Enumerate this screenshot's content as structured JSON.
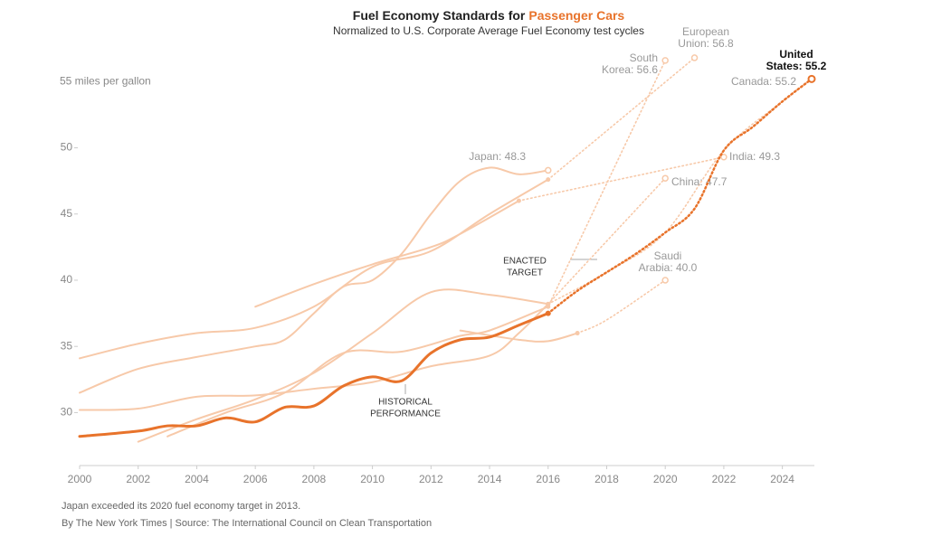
{
  "chart_data": {
    "type": "line",
    "title": [
      "Fuel Economy Standards for",
      "Passenger Cars"
    ],
    "title_accent_color": "#e8732b",
    "subtitle": "Normalized to U.S. Corporate Average Fuel Economy test cycles",
    "annotations": [
      [
        "ENACTED",
        "TARGET"
      ],
      [
        "HISTORICAL",
        "PERFORMANCE"
      ]
    ],
    "footnote": "Japan exceeded its 2020 fuel economy target in 2013.",
    "source": "By The New York Times | Source: The International Council on Clean Transportation",
    "xlim": [
      2000,
      2025
    ],
    "xticks": [
      2000,
      2002,
      2004,
      2006,
      2008,
      2010,
      2012,
      2014,
      2016,
      2018,
      2020,
      2022,
      2024
    ],
    "ylim": [
      26,
      57
    ],
    "yticks": [
      30,
      35,
      40,
      45,
      50,
      {
        "value": 55,
        "label": "55 miles per gallon"
      }
    ],
    "grid": false,
    "series": [
      {
        "label": [
          "Canada: 55.2"
        ],
        "color": "#f7c9a9",
        "x": [
          2000,
          2002,
          2004,
          2006,
          2008,
          2010,
          2012,
          2014,
          2015,
          2016
        ],
        "values": [
          30.2,
          30.3,
          31.2,
          31.3,
          31.8,
          32.3,
          33.5,
          34.3,
          36.0,
          38.2
        ],
        "target_x": [
          2016,
          2018,
          2020,
          2022,
          2024,
          2025
        ],
        "target_values": [
          38.2,
          40.6,
          43.6,
          49.8,
          53.5,
          55.2
        ]
      },
      {
        "label": [
          "China: 47.7"
        ],
        "color": "#f7c9a9",
        "x": [
          2002,
          2004,
          2006,
          2008,
          2010,
          2012,
          2014,
          2016
        ],
        "values": [
          27.8,
          29.5,
          31.0,
          33.0,
          36.0,
          39.1,
          38.9,
          38.2
        ],
        "target_x": [
          2016,
          2020
        ],
        "target_values": [
          38.2,
          47.7
        ]
      },
      {
        "label": [
          "India: 49.3"
        ],
        "color": "#f7c9a9",
        "x": [
          2006,
          2008,
          2010,
          2012,
          2013,
          2015
        ],
        "values": [
          38.0,
          39.7,
          41.2,
          42.5,
          43.5,
          46.0
        ],
        "target_x": [
          2015,
          2022
        ],
        "target_values": [
          46.0,
          49.3
        ]
      },
      {
        "label": [
          "Saudi",
          "Arabia: 40.0"
        ],
        "color": "#f7c9a9",
        "x": [
          2013,
          2015,
          2016,
          2017
        ],
        "values": [
          36.2,
          35.5,
          35.4,
          36.0
        ],
        "target_x": [
          2017,
          2018,
          2020
        ],
        "target_values": [
          36.0,
          37.0,
          40.0
        ]
      },
      {
        "label": [
          "South",
          "Korea: 56.6"
        ],
        "color": "#f7c9a9",
        "x": [
          2003,
          2005,
          2007,
          2009,
          2011,
          2013,
          2014,
          2016
        ],
        "values": [
          28.2,
          30.0,
          31.5,
          34.5,
          34.6,
          35.8,
          36.2,
          38.0
        ],
        "target_x": [
          2016,
          2020
        ],
        "target_values": [
          38.0,
          56.6
        ]
      },
      {
        "label": [
          "Japan: 48.3"
        ],
        "color": "#f7c9a9",
        "x": [
          2000,
          2002,
          2004,
          2006,
          2007,
          2008,
          2009,
          2010,
          2011,
          2012,
          2013,
          2014,
          2015,
          2016
        ],
        "values": [
          31.5,
          33.3,
          34.2,
          35.0,
          35.5,
          37.5,
          39.5,
          40.0,
          42.0,
          45.0,
          47.5,
          48.5,
          48.0,
          48.3
        ],
        "target_x": [],
        "target_values": []
      },
      {
        "label": [
          "European",
          "Union: 56.8"
        ],
        "color": "#f7c9a9",
        "x": [
          2000,
          2002,
          2004,
          2006,
          2008,
          2010,
          2012,
          2014,
          2016
        ],
        "values": [
          34.1,
          35.2,
          36.0,
          36.4,
          38.0,
          41.0,
          42.2,
          45.0,
          47.6
        ],
        "target_x": [
          2016,
          2021
        ],
        "target_values": [
          47.6,
          56.8
        ]
      },
      {
        "label": [
          "United",
          "States: 55.2"
        ],
        "color": "#e8732b",
        "x": [
          2000,
          2002,
          2003,
          2004,
          2005,
          2006,
          2007,
          2008,
          2009,
          2010,
          2011,
          2012,
          2013,
          2014,
          2015,
          2016
        ],
        "values": [
          28.2,
          28.6,
          29.0,
          29.0,
          29.6,
          29.3,
          30.4,
          30.5,
          32.0,
          32.7,
          32.4,
          34.5,
          35.5,
          35.7,
          36.6,
          37.5
        ],
        "target_x": [
          2016,
          2017,
          2018,
          2019,
          2020,
          2021,
          2022,
          2023,
          2024,
          2025
        ],
        "target_values": [
          37.5,
          39.2,
          40.6,
          42.0,
          43.6,
          45.4,
          49.8,
          51.6,
          53.5,
          55.2
        ]
      }
    ]
  }
}
